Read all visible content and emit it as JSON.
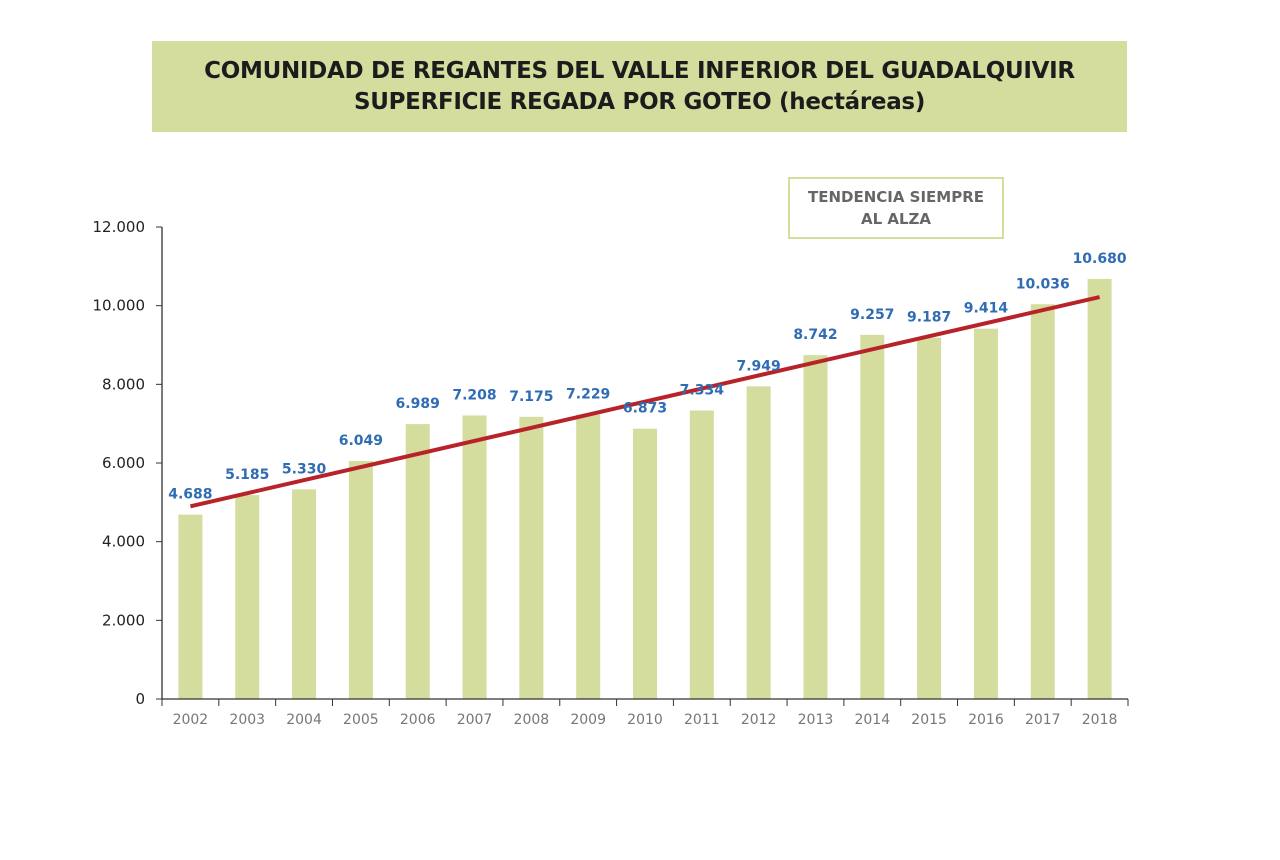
{
  "header": {
    "title": "COMUNIDAD DE REGANTES DEL VALLE INFERIOR DEL GUADALQUIVIR",
    "subtitle": "SUPERFICIE REGADA POR GOTEO (hectáreas)"
  },
  "annotation": {
    "line1": "TENDENCIA SIEMPRE",
    "line2": "AL ALZA"
  },
  "chart_data": {
    "type": "bar",
    "title": "COMUNIDAD DE REGANTES DEL VALLE INFERIOR DEL GUADALQUIVIR",
    "subtitle": "SUPERFICIE REGADA POR GOTEO (hectáreas)",
    "categories": [
      "2002",
      "2003",
      "2004",
      "2005",
      "2006",
      "2007",
      "2008",
      "2009",
      "2010",
      "2011",
      "2012",
      "2013",
      "2014",
      "2015",
      "2016",
      "2017",
      "2018"
    ],
    "values": [
      4688,
      5185,
      5330,
      6049,
      6989,
      7208,
      7175,
      7229,
      6873,
      7334,
      7949,
      8742,
      9257,
      9187,
      9414,
      10036,
      10680
    ],
    "data_labels": [
      "4.688",
      "5.185",
      "5.330",
      "6.049",
      "6.989",
      "7.208",
      "7.175",
      "7.229",
      "6.873",
      "7.334",
      "7.949",
      "8.742",
      "9.257",
      "9.187",
      "9.414",
      "10.036",
      "10.680"
    ],
    "ylim": [
      0,
      12000
    ],
    "yticks": [
      0,
      2000,
      4000,
      6000,
      8000,
      10000,
      12000
    ],
    "ytick_labels": [
      "0",
      "2.000",
      "4.000",
      "6.000",
      "8.000",
      "10.000",
      "12.000"
    ],
    "trendline": {
      "type": "linear",
      "start": 4900,
      "end": 10220
    },
    "grid": false,
    "xlabel": "",
    "ylabel": "",
    "colors": {
      "bar": "#d4dc9e",
      "trend": "#b8232a",
      "label": "#2f6cb4",
      "axis": "#333333"
    }
  }
}
